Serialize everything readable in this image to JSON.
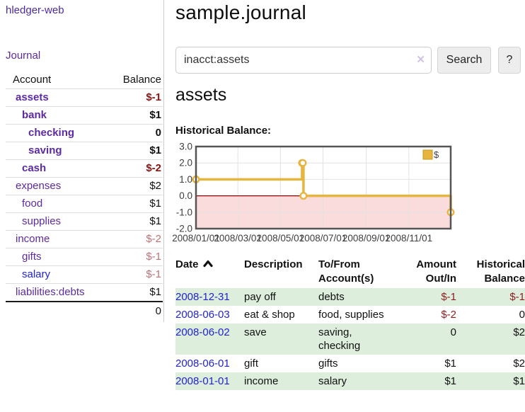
{
  "colors": {
    "purple_link": "#5b2aa4",
    "blue_link": "#2323d1",
    "negative_strong": "#8b1515",
    "negative_soft": "#bd7474",
    "row_shade_green": "#ddeedd",
    "chart_line_gold": "#e7b53e",
    "chart_zero_line": "#8b0000",
    "chart_negative_fill": "#fbdcdc"
  },
  "sidebar": {
    "app_title": "hledger-web",
    "journal_link": "Journal",
    "accounts": {
      "headers": {
        "account": "Account",
        "balance": "Balance"
      },
      "rows": [
        {
          "name": "assets",
          "indent": 1,
          "bold": true,
          "balance": "$-1",
          "balance_style": "neg-strong"
        },
        {
          "name": "bank",
          "indent": 2,
          "bold": true,
          "balance": "$1",
          "balance_style": "pos"
        },
        {
          "name": "checking",
          "indent": 3,
          "bold": true,
          "balance": "0",
          "balance_style": "pos"
        },
        {
          "name": "saving",
          "indent": 3,
          "bold": true,
          "balance": "$1",
          "balance_style": "pos"
        },
        {
          "name": "cash",
          "indent": 2,
          "bold": true,
          "balance": "$-2",
          "balance_style": "neg-strong"
        },
        {
          "name": "expenses",
          "indent": 1,
          "bold": false,
          "balance": "$2",
          "balance_style": "pos"
        },
        {
          "name": "food",
          "indent": 2,
          "bold": false,
          "balance": "$1",
          "balance_style": "pos"
        },
        {
          "name": "supplies",
          "indent": 2,
          "bold": false,
          "balance": "$1",
          "balance_style": "pos"
        },
        {
          "name": "income",
          "indent": 1,
          "bold": false,
          "balance": "$-2",
          "balance_style": "neg-soft"
        },
        {
          "name": "gifts",
          "indent": 2,
          "bold": false,
          "balance": "$-1",
          "balance_style": "neg-soft"
        },
        {
          "name": "salary",
          "indent": 2,
          "bold": false,
          "name_color": "blue",
          "balance": "$-1",
          "balance_style": "neg-soft"
        },
        {
          "name": "liabilities:debts",
          "indent": 1,
          "bold": false,
          "balance": "$1",
          "balance_style": "pos"
        }
      ],
      "total": "0"
    }
  },
  "main": {
    "title": "sample.journal",
    "search": {
      "value": "inacct:assets",
      "clear_icon": "✕",
      "button_label": "Search",
      "help_label": "?"
    },
    "account_heading": "assets",
    "chart_label": "Historical Balance:",
    "register": {
      "headers": {
        "date": "Date",
        "description": "Description",
        "tofrom": [
          "To/From",
          "Account(s)"
        ],
        "amount": [
          "Amount",
          "Out/In"
        ],
        "balance": [
          "Historical",
          "Balance"
        ]
      },
      "rows": [
        {
          "date": "2008-12-31",
          "description": "pay off",
          "accounts_lines": [
            "debts"
          ],
          "amount": "$-1",
          "amount_neg": true,
          "balance": "$-1",
          "balance_neg": true,
          "shaded": true
        },
        {
          "date": "2008-06-03",
          "description": "eat & shop",
          "accounts_lines": [
            "food, supplies"
          ],
          "amount": "$-2",
          "amount_neg": true,
          "balance": "0",
          "balance_neg": false,
          "shaded": false
        },
        {
          "date": "2008-06-02",
          "description": "save",
          "accounts_lines": [
            "saving,",
            "checking"
          ],
          "amount": "0",
          "amount_neg": false,
          "balance": "$2",
          "balance_neg": false,
          "shaded": true
        },
        {
          "date": "2008-06-01",
          "description": "gift",
          "accounts_lines": [
            "gifts"
          ],
          "amount": "$1",
          "amount_neg": false,
          "balance": "$2",
          "balance_neg": false,
          "shaded": false
        },
        {
          "date": "2008-01-01",
          "description": "income",
          "accounts_lines": [
            "salary"
          ],
          "amount": "$1",
          "amount_neg": false,
          "balance": "$1",
          "balance_neg": false,
          "shaded": true
        }
      ]
    }
  },
  "chart_data": {
    "type": "line",
    "step": true,
    "title": "Historical Balance:",
    "series": [
      {
        "name": "$",
        "color": "#e7b53e",
        "points": [
          [
            "2008-01-01",
            1
          ],
          [
            "2008-06-01",
            2
          ],
          [
            "2008-06-02",
            2
          ],
          [
            "2008-06-03",
            0
          ],
          [
            "2008-12-31",
            -1
          ]
        ]
      }
    ],
    "x_range": [
      "2008-01-01",
      "2008-12-31"
    ],
    "x_ticks": [
      "2008-01-01",
      "2008-03-01",
      "2008-05-01",
      "2008-07-01",
      "2008-09-01",
      "2008-11-01"
    ],
    "x_tick_labels": [
      "2008/01/01",
      "2008/03/01",
      "2008/05/01",
      "2008/07/01",
      "2008/09/01",
      "2008/11/01"
    ],
    "y_ticks": [
      3.0,
      2.0,
      1.0,
      0.0,
      -1.0,
      -2.0
    ],
    "ylim": [
      -2,
      3
    ],
    "grid": true,
    "legend": {
      "label": "$",
      "position": "top-right"
    },
    "zero_line_color": "#8b0000",
    "negative_region_fill": "#fbdcdc"
  }
}
